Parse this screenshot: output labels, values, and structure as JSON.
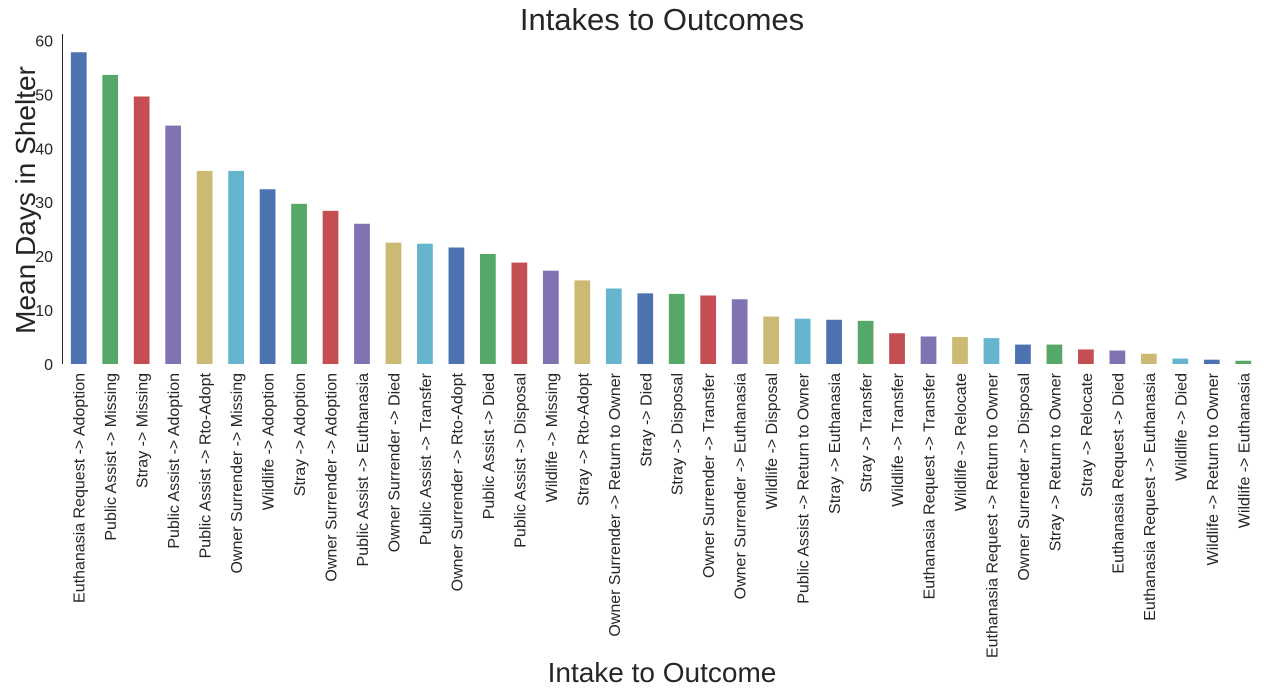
{
  "chart_data": {
    "type": "bar",
    "title": "Intakes to Outcomes",
    "xlabel": "Intake to Outcome",
    "ylabel": "Mean Days in Shelter",
    "ylim": [
      0,
      61
    ],
    "yticks": [
      0,
      10,
      20,
      30,
      40,
      50,
      60
    ],
    "grid": false,
    "colors": [
      "#4c72b0",
      "#55a868",
      "#c44e52",
      "#8172b2",
      "#ccb974",
      "#64b5cd"
    ],
    "categories": [
      "Euthanasia Request -> Adoption",
      "Public Assist -> Missing",
      "Stray -> Missing",
      "Public Assist -> Adoption",
      "Public Assist -> Rto-Adopt",
      "Owner Surrender -> Missing",
      "Wildlife -> Adoption",
      "Stray -> Adoption",
      "Owner Surrender -> Adoption",
      "Public Assist -> Euthanasia",
      "Owner Surrender -> Died",
      "Public Assist -> Transfer",
      "Owner Surrender -> Rto-Adopt",
      "Public Assist -> Died",
      "Public Assist -> Disposal",
      "Wildlife -> Missing",
      "Stray -> Rto-Adopt",
      "Owner Surrender -> Return to Owner",
      "Stray -> Died",
      "Stray -> Disposal",
      "Owner Surrender -> Transfer",
      "Owner Surrender -> Euthanasia",
      "Wildlife -> Disposal",
      "Public Assist -> Return to Owner",
      "Stray -> Euthanasia",
      "Stray -> Transfer",
      "Wildlife -> Transfer",
      "Euthanasia Request -> Transfer",
      "Wildlife -> Relocate",
      "Euthanasia Request -> Return to Owner",
      "Owner Surrender -> Disposal",
      "Stray -> Return to Owner",
      "Stray -> Relocate",
      "Euthanasia Request -> Died",
      "Euthanasia Request -> Euthanasia",
      "Wildlife -> Died",
      "Wildlife -> Return to Owner",
      "Wildlife -> Euthanasia"
    ],
    "values": [
      57.8,
      53.6,
      49.6,
      44.2,
      35.8,
      35.8,
      32.4,
      29.7,
      28.4,
      26.0,
      22.5,
      22.3,
      21.6,
      20.4,
      18.8,
      17.3,
      15.5,
      14.0,
      13.1,
      13.0,
      12.7,
      12.0,
      8.8,
      8.4,
      8.2,
      8.0,
      5.7,
      5.1,
      5.0,
      4.8,
      3.6,
      3.6,
      2.7,
      2.5,
      1.9,
      1.0,
      0.8,
      0.6
    ]
  }
}
